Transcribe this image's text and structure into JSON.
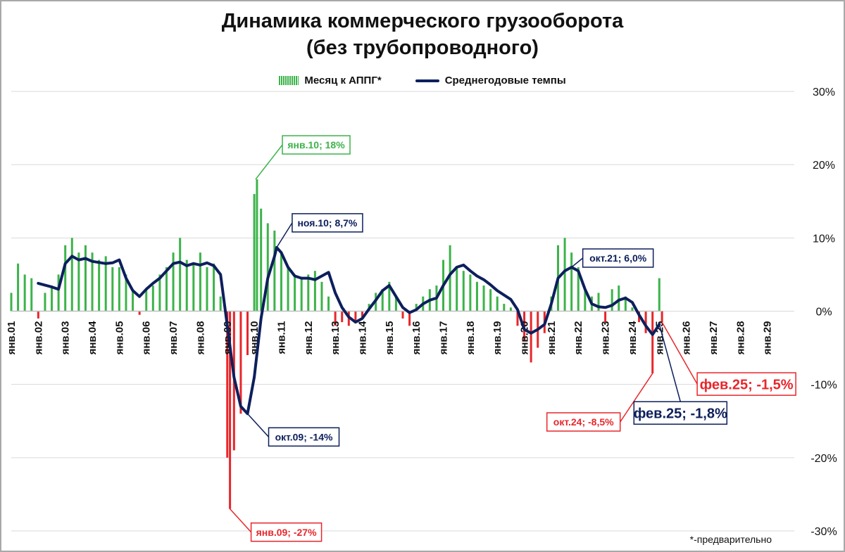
{
  "chart_data": {
    "type": "bar",
    "title": "Динамика коммерческого грузооборота",
    "subtitle": "(без трубопроводного)",
    "legend_position": "top",
    "ylim": [
      -30,
      30
    ],
    "y_ticks": [
      "30%",
      "20%",
      "10%",
      "0%",
      "-10%",
      "-20%",
      "-30%"
    ],
    "grid": true,
    "x_range": [
      2001.0,
      2030.0
    ],
    "x_ticks": [
      {
        "x": 2001,
        "label": "янв.01"
      },
      {
        "x": 2002,
        "label": "янв.02"
      },
      {
        "x": 2003,
        "label": "янв.03"
      },
      {
        "x": 2004,
        "label": "янв.04"
      },
      {
        "x": 2005,
        "label": "янв.05"
      },
      {
        "x": 2006,
        "label": "янв.06"
      },
      {
        "x": 2007,
        "label": "янв.07"
      },
      {
        "x": 2008,
        "label": "янв.08"
      },
      {
        "x": 2009,
        "label": "янв.09"
      },
      {
        "x": 2010,
        "label": "янв.10"
      },
      {
        "x": 2011,
        "label": "янв.11"
      },
      {
        "x": 2012,
        "label": "янв.12"
      },
      {
        "x": 2013,
        "label": "янв.13"
      },
      {
        "x": 2014,
        "label": "янв.14"
      },
      {
        "x": 2015,
        "label": "янв.15"
      },
      {
        "x": 2016,
        "label": "янв.16"
      },
      {
        "x": 2017,
        "label": "янв.17"
      },
      {
        "x": 2018,
        "label": "янв.18"
      },
      {
        "x": 2019,
        "label": "янв.19"
      },
      {
        "x": 2020,
        "label": "янв.20"
      },
      {
        "x": 2021,
        "label": "янв.21"
      },
      {
        "x": 2022,
        "label": "янв.22"
      },
      {
        "x": 2023,
        "label": "янв.23"
      },
      {
        "x": 2024,
        "label": "янв.24"
      },
      {
        "x": 2025,
        "label": "янв.25"
      },
      {
        "x": 2026,
        "label": "янв.26"
      },
      {
        "x": 2027,
        "label": "янв.27"
      },
      {
        "x": 2028,
        "label": "янв.28"
      },
      {
        "x": 2029,
        "label": "янв.29"
      }
    ],
    "series": [
      {
        "name": "Месяц к АППГ*",
        "type": "bar",
        "color_pos": "#3cb34a",
        "color_neg": "#e8262b",
        "points": [
          [
            2001.0,
            2.5
          ],
          [
            2001.25,
            6.5
          ],
          [
            2001.5,
            5
          ],
          [
            2001.75,
            4.5
          ],
          [
            2002.0,
            -1
          ],
          [
            2002.25,
            2.5
          ],
          [
            2002.5,
            3.5
          ],
          [
            2002.75,
            5
          ],
          [
            2003.0,
            9
          ],
          [
            2003.25,
            10
          ],
          [
            2003.5,
            8
          ],
          [
            2003.75,
            9
          ],
          [
            2004.0,
            8
          ],
          [
            2004.25,
            7
          ],
          [
            2004.5,
            7.5
          ],
          [
            2004.75,
            6
          ],
          [
            2005.0,
            6
          ],
          [
            2005.25,
            5
          ],
          [
            2005.5,
            3
          ],
          [
            2005.75,
            -0.5
          ],
          [
            2006.0,
            3
          ],
          [
            2006.25,
            3.5
          ],
          [
            2006.5,
            5
          ],
          [
            2006.75,
            6
          ],
          [
            2007.0,
            8
          ],
          [
            2007.25,
            10
          ],
          [
            2007.5,
            7
          ],
          [
            2007.75,
            6.5
          ],
          [
            2008.0,
            8
          ],
          [
            2008.25,
            6
          ],
          [
            2008.5,
            6.5
          ],
          [
            2008.75,
            2
          ],
          [
            2009.0,
            -20
          ],
          [
            2009.1,
            -27
          ],
          [
            2009.25,
            -19
          ],
          [
            2009.5,
            -14
          ],
          [
            2009.75,
            -6
          ],
          [
            2010.0,
            16
          ],
          [
            2010.1,
            18
          ],
          [
            2010.25,
            14
          ],
          [
            2010.5,
            12
          ],
          [
            2010.75,
            11
          ],
          [
            2011.0,
            8
          ],
          [
            2011.25,
            6
          ],
          [
            2011.5,
            5
          ],
          [
            2011.75,
            4.5
          ],
          [
            2012.0,
            5
          ],
          [
            2012.25,
            5.5
          ],
          [
            2012.5,
            4
          ],
          [
            2012.75,
            2
          ],
          [
            2013.0,
            -2
          ],
          [
            2013.25,
            -1.5
          ],
          [
            2013.5,
            -2
          ],
          [
            2013.75,
            -1.5
          ],
          [
            2014.0,
            -1
          ],
          [
            2014.25,
            1
          ],
          [
            2014.5,
            2.5
          ],
          [
            2014.75,
            3
          ],
          [
            2015.0,
            4
          ],
          [
            2015.25,
            2
          ],
          [
            2015.5,
            -1
          ],
          [
            2015.75,
            -2
          ],
          [
            2016.0,
            1
          ],
          [
            2016.25,
            2
          ],
          [
            2016.5,
            3
          ],
          [
            2016.75,
            3.5
          ],
          [
            2017.0,
            7
          ],
          [
            2017.25,
            9
          ],
          [
            2017.5,
            6
          ],
          [
            2017.75,
            5.5
          ],
          [
            2018.0,
            5
          ],
          [
            2018.25,
            4
          ],
          [
            2018.5,
            3.5
          ],
          [
            2018.75,
            3
          ],
          [
            2019.0,
            2
          ],
          [
            2019.25,
            1
          ],
          [
            2019.5,
            0.5
          ],
          [
            2019.75,
            -2
          ],
          [
            2020.0,
            -4
          ],
          [
            2020.25,
            -7
          ],
          [
            2020.5,
            -5
          ],
          [
            2020.75,
            -3
          ],
          [
            2021.0,
            2
          ],
          [
            2021.25,
            9
          ],
          [
            2021.5,
            10
          ],
          [
            2021.75,
            8
          ],
          [
            2022.0,
            6
          ],
          [
            2022.25,
            3
          ],
          [
            2022.5,
            2
          ],
          [
            2022.75,
            2.5
          ],
          [
            2023.0,
            -1.5
          ],
          [
            2023.25,
            3
          ],
          [
            2023.5,
            3.5
          ],
          [
            2023.75,
            2
          ],
          [
            2024.0,
            0.5
          ],
          [
            2024.25,
            -1.5
          ],
          [
            2024.5,
            -3
          ],
          [
            2024.75,
            -8.5
          ],
          [
            2025.0,
            4.5
          ],
          [
            2025.1,
            -1.5
          ]
        ]
      },
      {
        "name": "Среднегодовые темпы",
        "type": "line",
        "color": "#0d1f5c",
        "points": [
          [
            2002.0,
            3.8
          ],
          [
            2002.5,
            3.3
          ],
          [
            2002.75,
            3.0
          ],
          [
            2003.0,
            6.5
          ],
          [
            2003.25,
            7.5
          ],
          [
            2003.5,
            7.0
          ],
          [
            2003.75,
            7.2
          ],
          [
            2004.0,
            6.8
          ],
          [
            2004.5,
            6.5
          ],
          [
            2004.75,
            6.6
          ],
          [
            2005.0,
            7.0
          ],
          [
            2005.25,
            4.5
          ],
          [
            2005.5,
            2.8
          ],
          [
            2005.75,
            2.0
          ],
          [
            2006.0,
            3.0
          ],
          [
            2006.25,
            3.8
          ],
          [
            2006.5,
            4.5
          ],
          [
            2006.75,
            5.5
          ],
          [
            2007.0,
            6.5
          ],
          [
            2007.25,
            6.7
          ],
          [
            2007.5,
            6.2
          ],
          [
            2007.75,
            6.5
          ],
          [
            2008.0,
            6.3
          ],
          [
            2008.25,
            6.6
          ],
          [
            2008.5,
            6.2
          ],
          [
            2008.75,
            5.0
          ],
          [
            2009.0,
            -2.0
          ],
          [
            2009.25,
            -9.0
          ],
          [
            2009.5,
            -13.0
          ],
          [
            2009.75,
            -14.0
          ],
          [
            2010.0,
            -9.0
          ],
          [
            2010.25,
            -1.0
          ],
          [
            2010.5,
            4.5
          ],
          [
            2010.75,
            7.5
          ],
          [
            2010.83,
            8.7
          ],
          [
            2011.0,
            8.0
          ],
          [
            2011.25,
            6.0
          ],
          [
            2011.5,
            4.8
          ],
          [
            2011.75,
            4.5
          ],
          [
            2012.0,
            4.5
          ],
          [
            2012.25,
            4.3
          ],
          [
            2012.5,
            4.8
          ],
          [
            2012.75,
            5.3
          ],
          [
            2013.0,
            2.5
          ],
          [
            2013.25,
            0.5
          ],
          [
            2013.5,
            -0.8
          ],
          [
            2013.75,
            -1.5
          ],
          [
            2014.0,
            -1.0
          ],
          [
            2014.25,
            0.3
          ],
          [
            2014.5,
            1.5
          ],
          [
            2014.75,
            2.8
          ],
          [
            2015.0,
            3.5
          ],
          [
            2015.25,
            2.0
          ],
          [
            2015.5,
            0.5
          ],
          [
            2015.75,
            -0.2
          ],
          [
            2016.0,
            0.2
          ],
          [
            2016.25,
            1.0
          ],
          [
            2016.5,
            1.5
          ],
          [
            2016.75,
            1.8
          ],
          [
            2017.0,
            3.5
          ],
          [
            2017.25,
            5.0
          ],
          [
            2017.5,
            6.0
          ],
          [
            2017.75,
            6.3
          ],
          [
            2018.0,
            5.5
          ],
          [
            2018.25,
            4.8
          ],
          [
            2018.5,
            4.3
          ],
          [
            2018.75,
            3.6
          ],
          [
            2019.0,
            2.8
          ],
          [
            2019.25,
            2.2
          ],
          [
            2019.5,
            1.6
          ],
          [
            2019.75,
            0.2
          ],
          [
            2020.0,
            -2.5
          ],
          [
            2020.25,
            -3.0
          ],
          [
            2020.5,
            -2.5
          ],
          [
            2020.75,
            -1.8
          ],
          [
            2021.0,
            1.0
          ],
          [
            2021.25,
            4.5
          ],
          [
            2021.5,
            5.5
          ],
          [
            2021.75,
            6.0
          ],
          [
            2022.0,
            5.5
          ],
          [
            2022.25,
            3.0
          ],
          [
            2022.5,
            1.0
          ],
          [
            2022.75,
            0.6
          ],
          [
            2023.0,
            0.5
          ],
          [
            2023.25,
            0.8
          ],
          [
            2023.5,
            1.5
          ],
          [
            2023.75,
            1.8
          ],
          [
            2024.0,
            1.2
          ],
          [
            2024.25,
            -0.5
          ],
          [
            2024.5,
            -2.0
          ],
          [
            2024.75,
            -3.2
          ],
          [
            2025.0,
            -1.8
          ]
        ]
      }
    ],
    "annotations": [
      {
        "text": "янв.10; 18%",
        "x": 2010.05,
        "y": 18,
        "color": "#3cb34a"
      },
      {
        "text": "ноя.10; 8,7%",
        "x": 2010.83,
        "y": 8.7,
        "color": "#0d1f5c"
      },
      {
        "text": "окт.21; 6,0%",
        "x": 2021.75,
        "y": 6.0,
        "color": "#0d1f5c"
      },
      {
        "text": "окт.09; -14%",
        "x": 2009.75,
        "y": -14,
        "color": "#0d1f5c"
      },
      {
        "text": "янв.09; -27%",
        "x": 2009.1,
        "y": -27,
        "color": "#e8262b"
      },
      {
        "text": "окт.24; -8,5%",
        "x": 2024.75,
        "y": -8.5,
        "color": "#e8262b"
      },
      {
        "text": "фев.25; -1,8%",
        "x": 2025.0,
        "y": -1.8,
        "color": "#0d1f5c"
      },
      {
        "text": "фев.25; -1,5%",
        "x": 2025.1,
        "y": -1.5,
        "color": "#e8262b"
      }
    ],
    "footnote": "*-предварительно"
  }
}
